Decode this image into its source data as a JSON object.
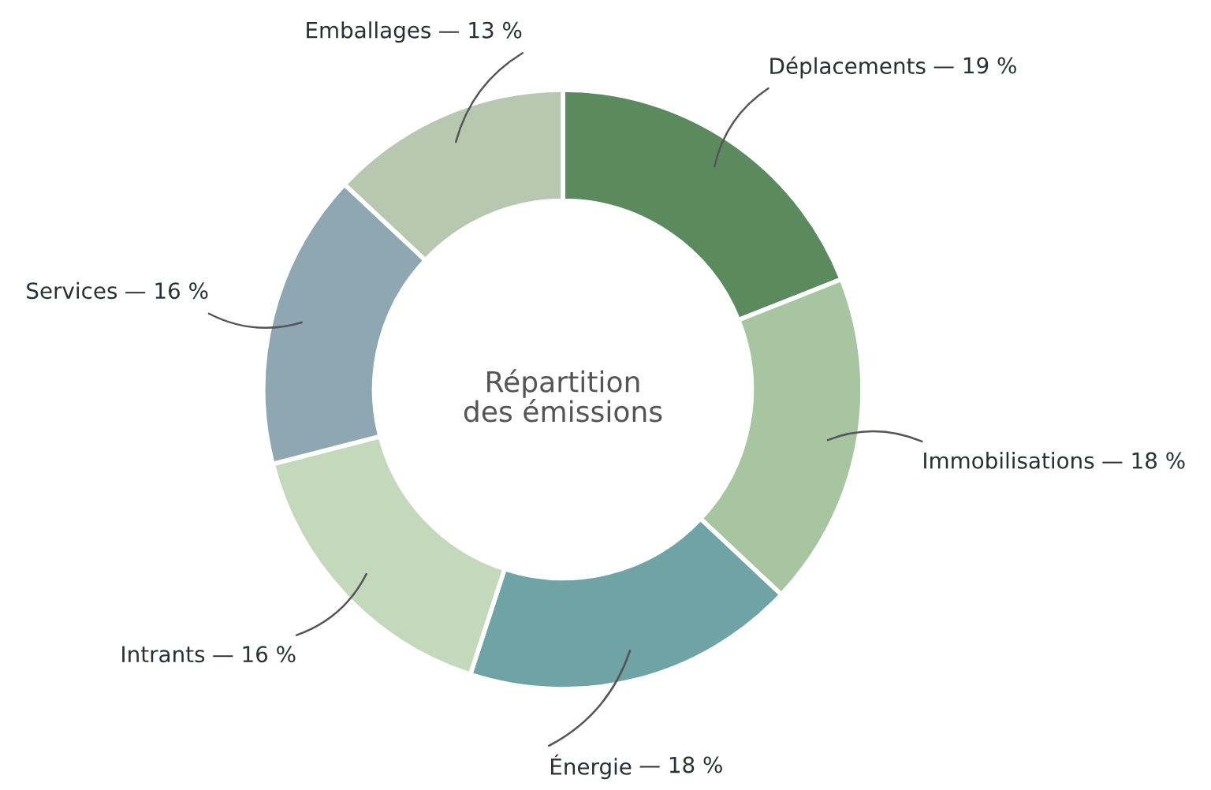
{
  "chart_data": {
    "type": "donut",
    "title": "Répartition\ndes émissions",
    "categories": [
      "Déplacements",
      "Immobilisations",
      "Énergie",
      "Intrants",
      "Services",
      "Emballages"
    ],
    "values": [
      19,
      18,
      18,
      16,
      16,
      13
    ],
    "value_labels": [
      "— 19 %",
      "— 18 %",
      "— 18 %",
      "— 16 %",
      "— 16 %",
      "— 13 %"
    ],
    "colors": [
      "#5b8a5f",
      "#a7c5a0",
      "#6fa3a6",
      "#c4d9bb",
      "#8fa7b2",
      "#b8c7af"
    ],
    "legend": false
  }
}
